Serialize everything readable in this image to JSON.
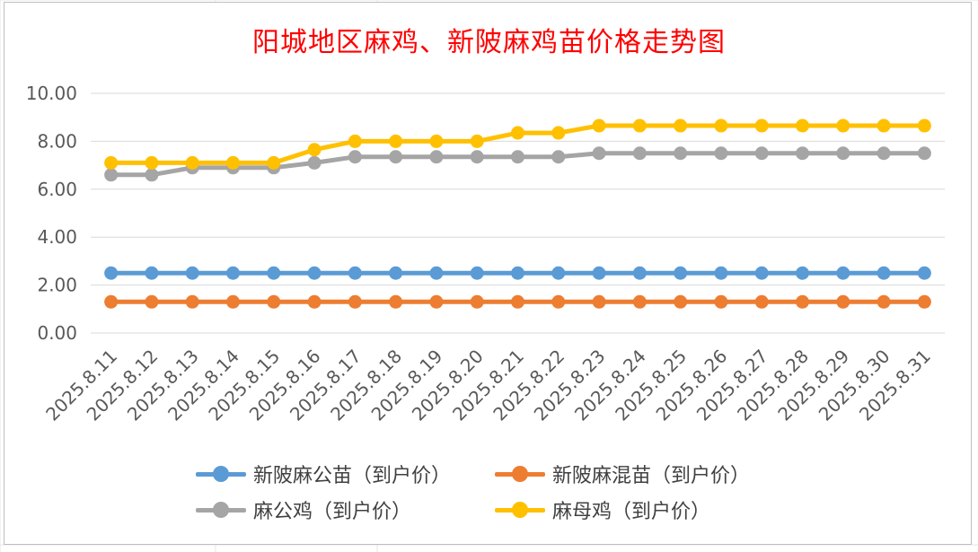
{
  "title": "阳城地区麻鸡、新陂麻鸡苗价格走势图",
  "colors": {
    "title": "#ff0000",
    "axis_text": "#595959",
    "gridline": "#d9d9d9",
    "sheet_grid": "#e6e6e6"
  },
  "chart_data": {
    "type": "line",
    "title": "阳城地区麻鸡、新陂麻鸡苗价格走势图",
    "categories": [
      "2025.8.11",
      "2025.8.12",
      "2025.8.13",
      "2025.8.14",
      "2025.8.15",
      "2025.8.16",
      "2025.8.17",
      "2025.8.18",
      "2025.8.19",
      "2025.8.20",
      "2025.8.21",
      "2025.8.22",
      "2025.8.23",
      "2025.8.24",
      "2025.8.25",
      "2025.8.26",
      "2025.8.27",
      "2025.8.28",
      "2025.8.29",
      "2025.8.30",
      "2025.8.31"
    ],
    "y_ticks": [
      "0.00",
      "2.00",
      "4.00",
      "6.00",
      "8.00",
      "10.00"
    ],
    "ylim": [
      0,
      10
    ],
    "grid": true,
    "legend_position": "bottom",
    "series": [
      {
        "name": "新陂麻公苗（到户价）",
        "color": "#5b9bd5",
        "values": [
          2.5,
          2.5,
          2.5,
          2.5,
          2.5,
          2.5,
          2.5,
          2.5,
          2.5,
          2.5,
          2.5,
          2.5,
          2.5,
          2.5,
          2.5,
          2.5,
          2.5,
          2.5,
          2.5,
          2.5,
          2.5
        ]
      },
      {
        "name": "新陂麻混苗（到户价）",
        "color": "#ed7d31",
        "values": [
          1.3,
          1.3,
          1.3,
          1.3,
          1.3,
          1.3,
          1.3,
          1.3,
          1.3,
          1.3,
          1.3,
          1.3,
          1.3,
          1.3,
          1.3,
          1.3,
          1.3,
          1.3,
          1.3,
          1.3,
          1.3
        ]
      },
      {
        "name": "麻公鸡（到户价）",
        "color": "#a5a5a5",
        "values": [
          6.6,
          6.6,
          6.9,
          6.9,
          6.9,
          7.1,
          7.35,
          7.35,
          7.35,
          7.35,
          7.35,
          7.35,
          7.5,
          7.5,
          7.5,
          7.5,
          7.5,
          7.5,
          7.5,
          7.5,
          7.5
        ]
      },
      {
        "name": "麻母鸡（到户价）",
        "color": "#ffc000",
        "values": [
          7.1,
          7.1,
          7.1,
          7.1,
          7.1,
          7.65,
          8.0,
          8.0,
          8.0,
          8.0,
          8.35,
          8.35,
          8.65,
          8.65,
          8.65,
          8.65,
          8.65,
          8.65,
          8.65,
          8.65,
          8.65
        ]
      }
    ]
  }
}
